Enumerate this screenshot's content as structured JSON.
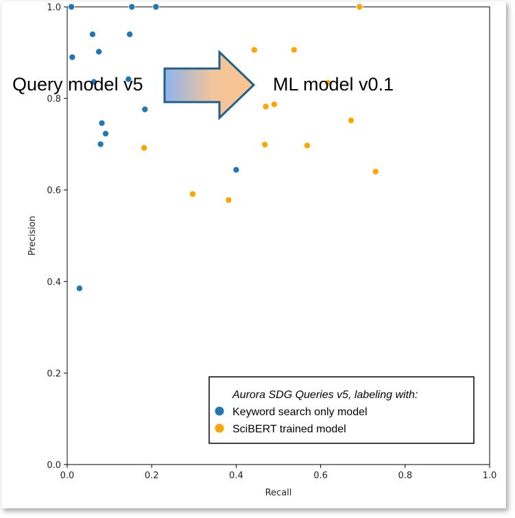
{
  "chart_data": {
    "type": "scatter",
    "xlabel": "Recall",
    "ylabel": "Precision",
    "xlim": [
      0,
      1
    ],
    "ylim": [
      0,
      1
    ],
    "xticks": [
      "0.0",
      "0.2",
      "0.4",
      "0.6",
      "0.8",
      "1.0"
    ],
    "yticks": [
      "0.0",
      "0.2",
      "0.4",
      "0.6",
      "0.8",
      "1.0"
    ],
    "grid": false,
    "legend_position": "lower-right",
    "legend_title": "Aurora SDG Queries v5, labeling with:",
    "series": [
      {
        "name": "Keyword search only model",
        "color": "#1f77b4",
        "points": [
          [
            0.01,
            1.0
          ],
          [
            0.153,
            1.0
          ],
          [
            0.21,
            1.0
          ],
          [
            0.06,
            0.94
          ],
          [
            0.148,
            0.94
          ],
          [
            0.012,
            0.89
          ],
          [
            0.075,
            0.902
          ],
          [
            0.063,
            0.836
          ],
          [
            0.145,
            0.842
          ],
          [
            0.184,
            0.776
          ],
          [
            0.082,
            0.746
          ],
          [
            0.091,
            0.723
          ],
          [
            0.079,
            0.7
          ],
          [
            0.4,
            0.644
          ],
          [
            0.029,
            0.385
          ]
        ]
      },
      {
        "name": "SciBERT trained model",
        "color": "#ffa500",
        "points": [
          [
            0.692,
            1.0
          ],
          [
            0.443,
            0.906
          ],
          [
            0.537,
            0.906
          ],
          [
            0.617,
            0.834
          ],
          [
            0.47,
            0.782
          ],
          [
            0.49,
            0.787
          ],
          [
            0.672,
            0.752
          ],
          [
            0.182,
            0.692
          ],
          [
            0.468,
            0.699
          ],
          [
            0.568,
            0.697
          ],
          [
            0.73,
            0.64
          ],
          [
            0.297,
            0.591
          ],
          [
            0.382,
            0.578
          ]
        ]
      }
    ]
  },
  "annotations": {
    "left_label": "Query model v5",
    "right_label": "ML model v0.1",
    "arrow_icon": "right-arrow-icon"
  }
}
